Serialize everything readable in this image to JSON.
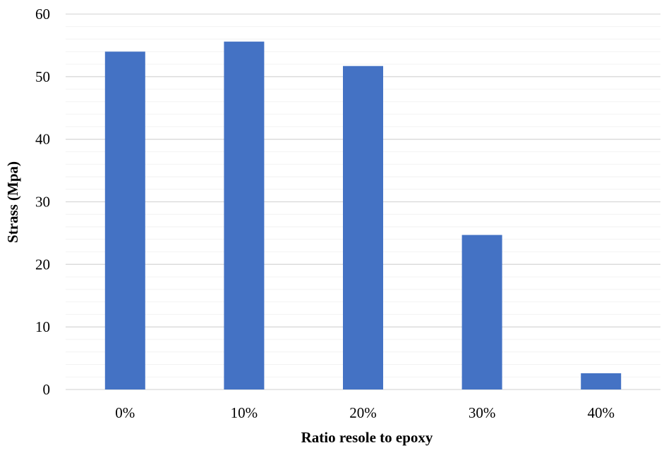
{
  "chart_data": {
    "type": "bar",
    "title": "",
    "xlabel": "Ratio resole to epoxy",
    "ylabel": "Strass (Mpa)",
    "categories": [
      "0%",
      "10%",
      "20%",
      "30%",
      "40%"
    ],
    "values": [
      54,
      55.6,
      51.7,
      24.7,
      2.6
    ],
    "ylim": [
      0,
      60
    ],
    "yticks": [
      "0",
      "10",
      "20",
      "30",
      "40",
      "50",
      "60"
    ],
    "grid": true,
    "legend": "none",
    "colors": {
      "bar": "#4472C4",
      "major_grid": "#D9D9D9",
      "minor_grid": "#F2F2F2"
    }
  }
}
